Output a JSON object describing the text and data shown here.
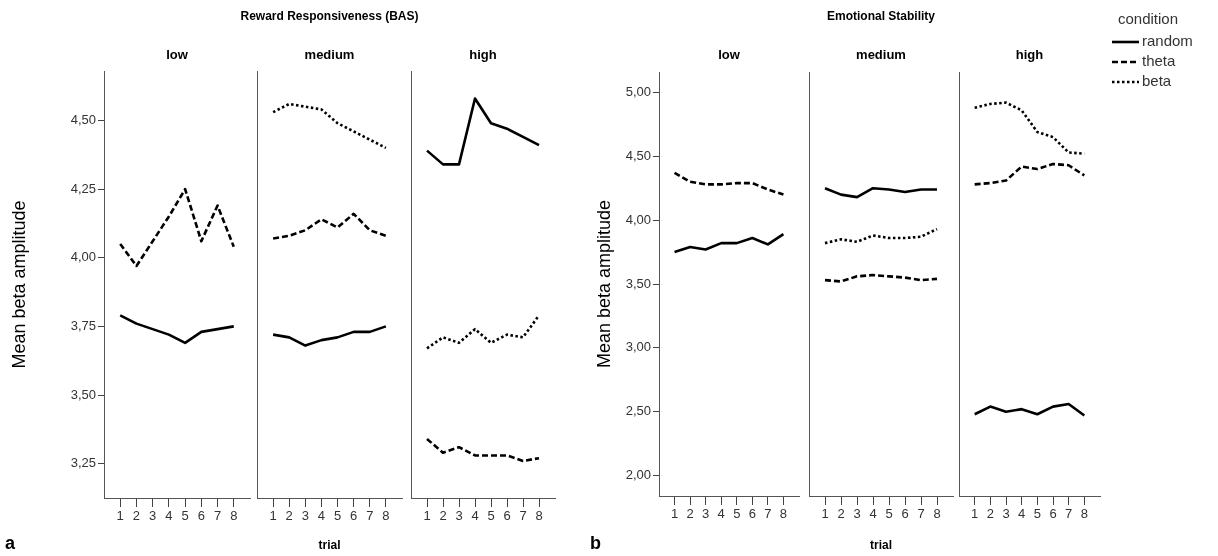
{
  "chart_data": [
    {
      "type": "line",
      "subtitle": "low",
      "ylabel": "Mean beta amplitude",
      "annotations": [
        "a"
      ],
      "categories": [
        "1",
        "2",
        "3",
        "4",
        "5",
        "6",
        "7",
        "8"
      ],
      "ylim": [
        3.125,
        4.68
      ],
      "yticks": [
        {
          "value": 3.25,
          "label": "3,25"
        },
        {
          "value": 3.5,
          "label": "3,50"
        },
        {
          "value": 3.75,
          "label": "3,75"
        },
        {
          "value": 4.0,
          "label": "4,00"
        },
        {
          "value": 4.25,
          "label": "4,25"
        },
        {
          "value": 4.5,
          "label": "4,50"
        }
      ],
      "marker": "none",
      "series": [
        {
          "color": "#000000",
          "line_style": "solid",
          "values": [
            3.79,
            3.76,
            3.74,
            3.72,
            3.69,
            3.73,
            3.74,
            3.75
          ]
        },
        {
          "color": "#000000",
          "line_style": "dashed",
          "values": [
            4.05,
            3.97,
            4.06,
            4.15,
            4.25,
            4.06,
            4.19,
            4.04
          ]
        }
      ]
    },
    {
      "type": "line",
      "title": "Reward Responsiveness (BAS)",
      "subtitle": "medium",
      "xlabel": "trial",
      "categories": [
        "1",
        "2",
        "3",
        "4",
        "5",
        "6",
        "7",
        "8"
      ],
      "ylim": [
        3.125,
        4.68
      ],
      "tick_labels": "x",
      "marker": "none",
      "series": [
        {
          "color": "#000000",
          "line_style": "solid",
          "values": [
            3.72,
            3.71,
            3.68,
            3.7,
            3.71,
            3.73,
            3.73,
            3.75
          ]
        },
        {
          "color": "#000000",
          "line_style": "dashed",
          "values": [
            4.07,
            4.08,
            4.1,
            4.14,
            4.11,
            4.16,
            4.1,
            4.08
          ]
        },
        {
          "color": "#000000",
          "line_style": "dotted",
          "values": [
            4.53,
            4.56,
            4.55,
            4.54,
            4.49,
            4.46,
            4.43,
            4.4
          ]
        }
      ]
    },
    {
      "type": "line",
      "subtitle": "high",
      "categories": [
        "1",
        "2",
        "3",
        "4",
        "5",
        "6",
        "7",
        "8"
      ],
      "ylim": [
        3.125,
        4.68
      ],
      "tick_labels": "x",
      "marker": "none",
      "series": [
        {
          "color": "#000000",
          "line_style": "solid",
          "values": [
            4.39,
            4.34,
            4.34,
            4.58,
            4.49,
            4.47,
            4.44,
            4.41
          ]
        },
        {
          "color": "#000000",
          "line_style": "dashed",
          "values": [
            3.34,
            3.29,
            3.31,
            3.28,
            3.28,
            3.28,
            3.26,
            3.27
          ]
        },
        {
          "color": "#000000",
          "line_style": "dotted",
          "values": [
            3.67,
            3.71,
            3.69,
            3.74,
            3.69,
            3.72,
            3.71,
            3.79
          ]
        }
      ]
    },
    {
      "type": "line",
      "subtitle": "low",
      "ylabel": "Mean beta amplitude",
      "annotations": [
        "b"
      ],
      "categories": [
        "1",
        "2",
        "3",
        "4",
        "5",
        "6",
        "7",
        "8"
      ],
      "ylim": [
        1.84,
        5.16
      ],
      "yticks": [
        {
          "value": 2.0,
          "label": "2,00"
        },
        {
          "value": 2.5,
          "label": "2,50"
        },
        {
          "value": 3.0,
          "label": "3,00"
        },
        {
          "value": 3.5,
          "label": "3,50"
        },
        {
          "value": 4.0,
          "label": "4,00"
        },
        {
          "value": 4.5,
          "label": "4,50"
        },
        {
          "value": 5.0,
          "label": "5,00"
        }
      ],
      "marker": "none",
      "series": [
        {
          "color": "#000000",
          "line_style": "solid",
          "values": [
            3.75,
            3.79,
            3.77,
            3.82,
            3.82,
            3.86,
            3.81,
            3.89
          ]
        },
        {
          "color": "#000000",
          "line_style": "dashed",
          "values": [
            4.37,
            4.3,
            4.28,
            4.28,
            4.29,
            4.29,
            4.24,
            4.2
          ]
        }
      ]
    },
    {
      "type": "line",
      "title": "Emotional Stability",
      "subtitle": "medium",
      "xlabel": "trial",
      "categories": [
        "1",
        "2",
        "3",
        "4",
        "5",
        "6",
        "7",
        "8"
      ],
      "ylim": [
        1.84,
        5.16
      ],
      "tick_labels": "x",
      "marker": "none",
      "series": [
        {
          "color": "#000000",
          "line_style": "solid",
          "values": [
            4.25,
            4.2,
            4.18,
            4.25,
            4.24,
            4.22,
            4.24,
            4.24
          ]
        },
        {
          "color": "#000000",
          "line_style": "dashed",
          "values": [
            3.53,
            3.52,
            3.56,
            3.57,
            3.56,
            3.55,
            3.53,
            3.54
          ]
        },
        {
          "color": "#000000",
          "line_style": "dotted",
          "values": [
            3.82,
            3.85,
            3.83,
            3.88,
            3.86,
            3.86,
            3.87,
            3.93
          ]
        }
      ]
    },
    {
      "type": "line",
      "subtitle": "high",
      "legend_title": "condition",
      "legend": "top right",
      "categories": [
        "1",
        "2",
        "3",
        "4",
        "5",
        "6",
        "7",
        "8"
      ],
      "ylim": [
        1.84,
        5.16
      ],
      "tick_labels": "x",
      "marker": "none",
      "series": [
        {
          "name": "random",
          "color": "#000000",
          "line_style": "solid",
          "values": [
            2.48,
            2.54,
            2.5,
            2.52,
            2.48,
            2.54,
            2.56,
            2.47
          ]
        },
        {
          "name": "theta",
          "color": "#000000",
          "line_style": "dashed",
          "values": [
            4.28,
            4.29,
            4.31,
            4.42,
            4.4,
            4.44,
            4.43,
            4.35
          ]
        },
        {
          "name": "beta",
          "color": "#000000",
          "line_style": "dotted",
          "values": [
            4.88,
            4.91,
            4.92,
            4.86,
            4.69,
            4.65,
            4.53,
            4.52
          ]
        }
      ]
    }
  ]
}
